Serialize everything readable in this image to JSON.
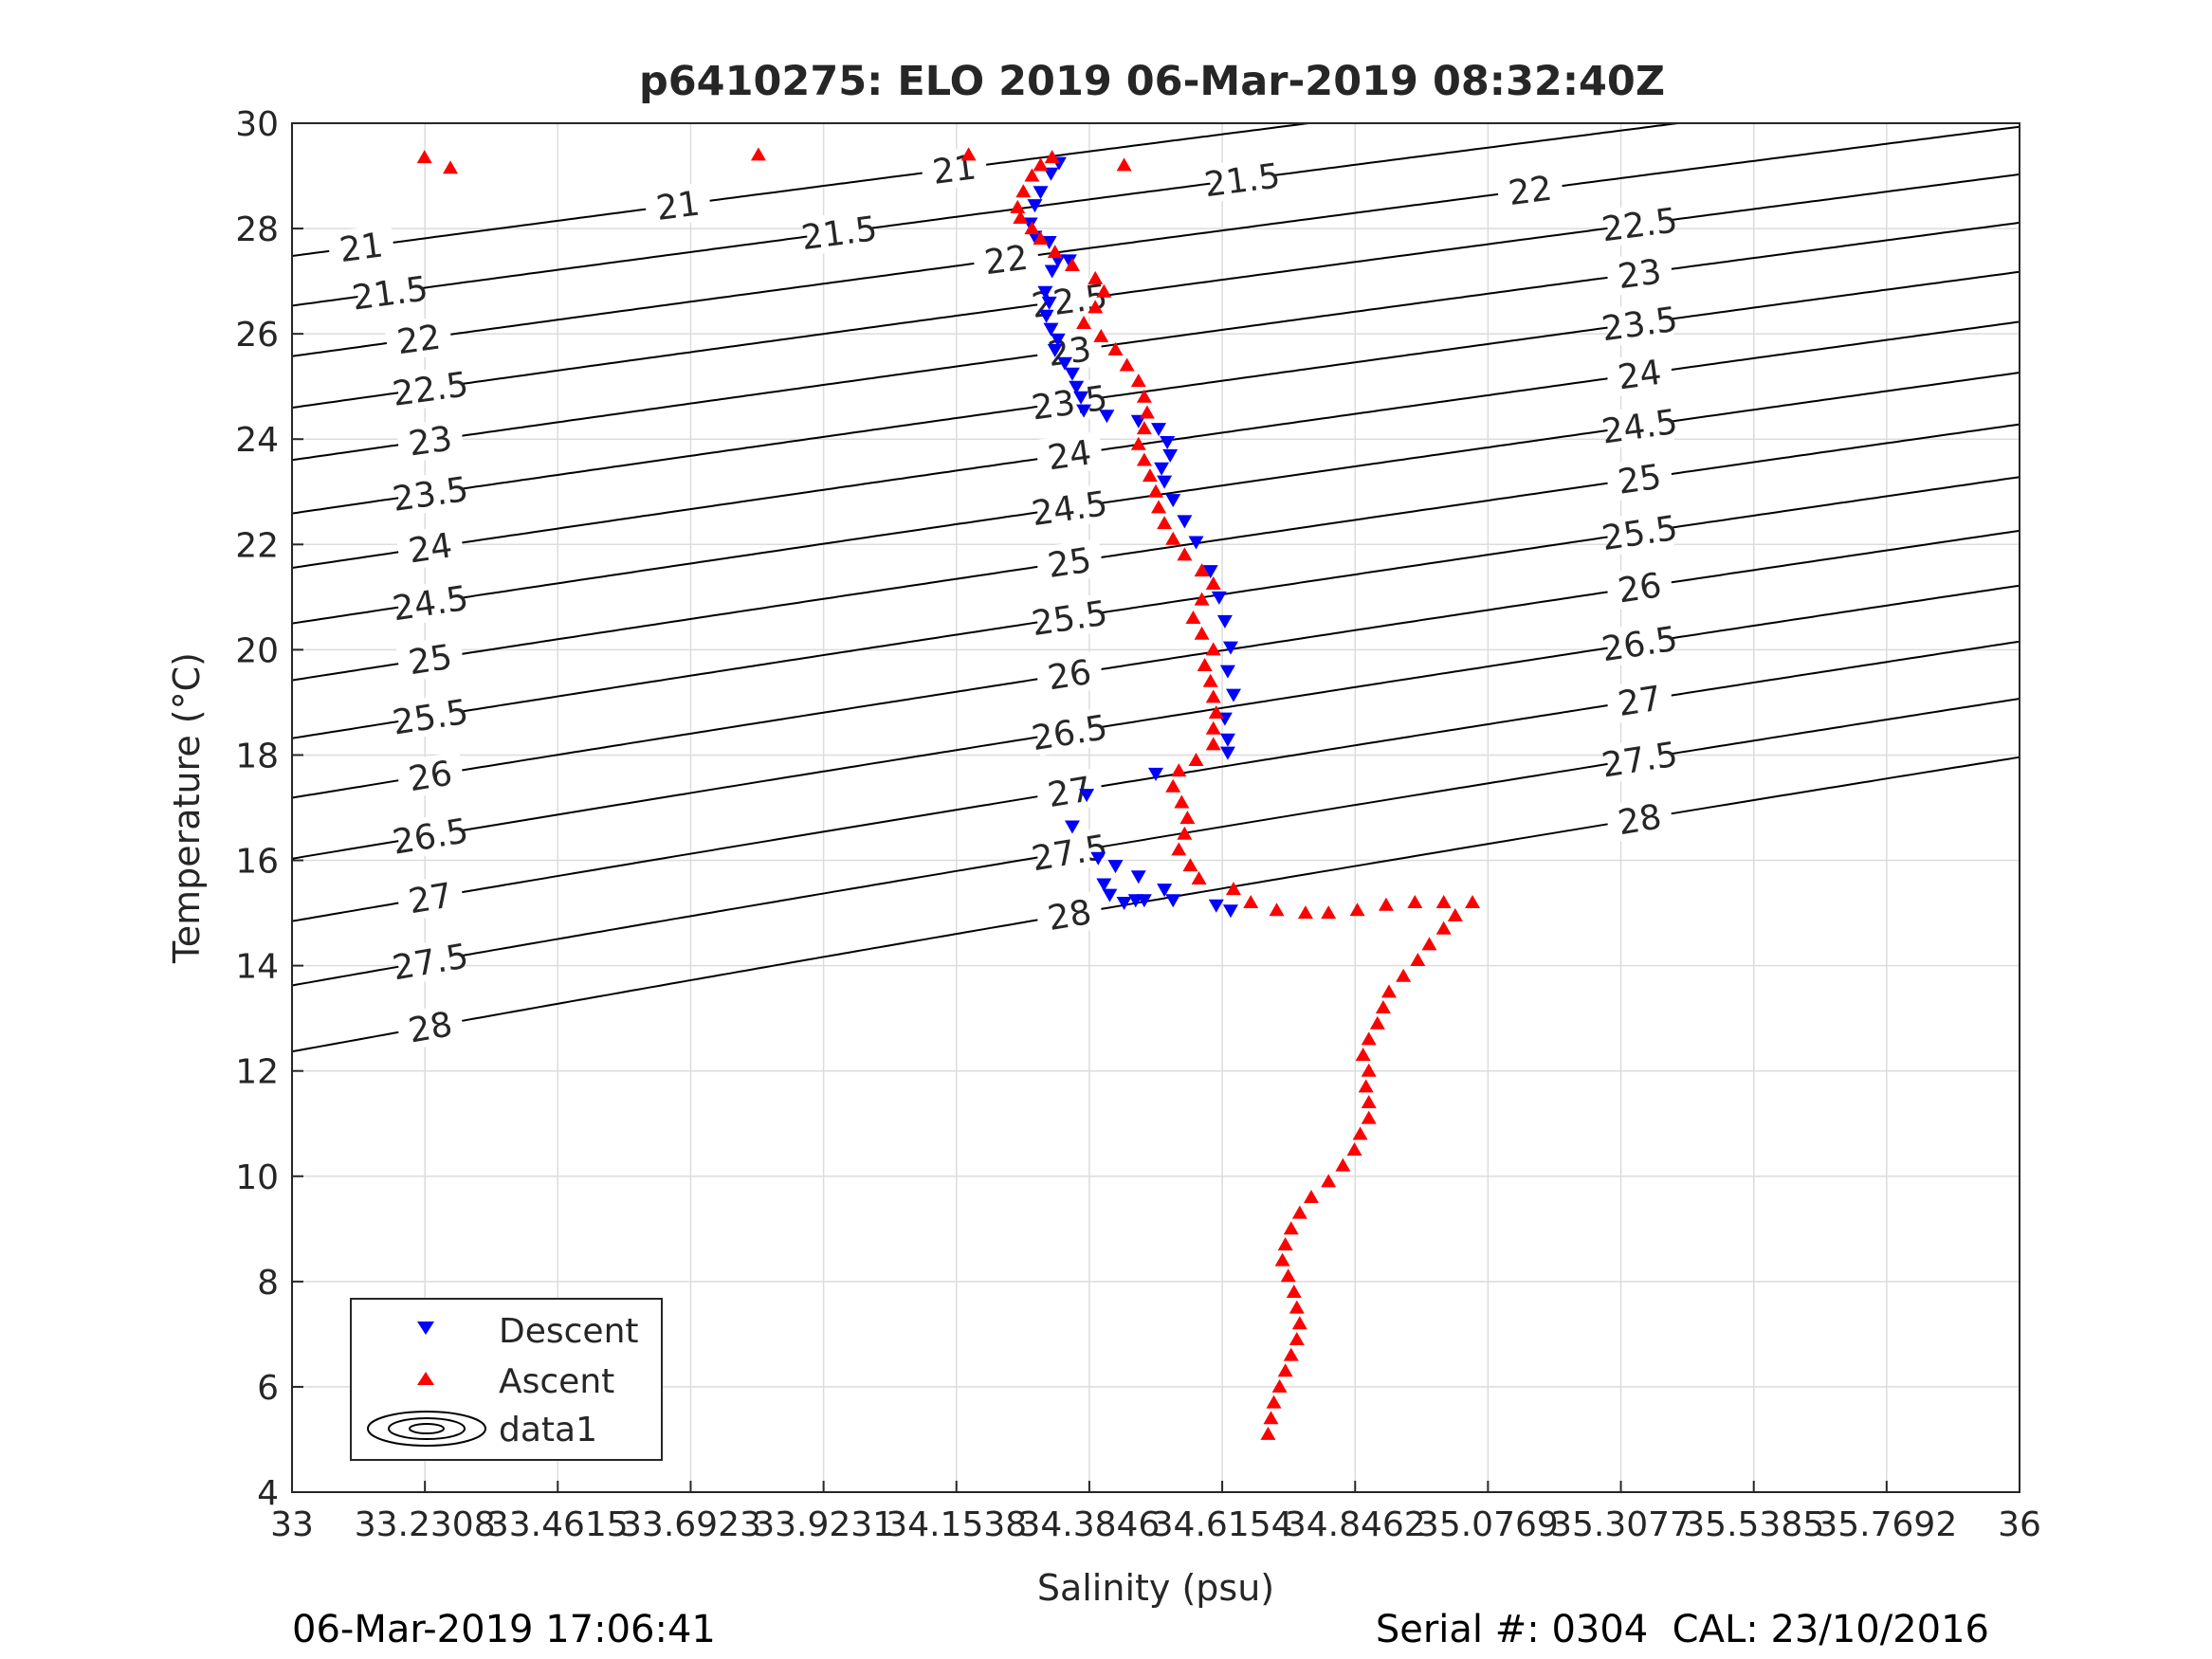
{
  "chart_data": {
    "type": "scatter",
    "title": "p6410275: ELO 2019 06-Mar-2019 08:32:40Z",
    "xlabel": "Salinity (psu)",
    "ylabel": "Temperature (°C)",
    "xlim": [
      33,
      36
    ],
    "ylim": [
      4,
      30
    ],
    "x_ticks": [
      "33",
      "33.2308",
      "33.4615",
      "33.6923",
      "33.9231",
      "34.1538",
      "34.3846",
      "34.6154",
      "34.8462",
      "35.0769",
      "35.3077",
      "35.5385",
      "35.7692",
      "36"
    ],
    "y_ticks": [
      "4",
      "6",
      "8",
      "10",
      "12",
      "14",
      "16",
      "18",
      "20",
      "22",
      "24",
      "26",
      "28",
      "30"
    ],
    "grid": true,
    "legend_position": "bottom-left",
    "legend": [
      "Descent",
      "Ascent",
      "data1"
    ],
    "colors": {
      "descent": "#0000ff",
      "ascent": "#ff0000",
      "contour": "#000000",
      "grid": "#dcdcdc"
    },
    "contour_levels": [
      "21",
      "21.5",
      "22",
      "22.5",
      "23",
      "23.5",
      "24",
      "24.5",
      "25",
      "25.5",
      "26",
      "26.5",
      "27",
      "27.5",
      "28"
    ],
    "series": [
      {
        "name": "Descent",
        "marker": "triangle-down",
        "points": [
          [
            34.332,
            29.25
          ],
          [
            34.318,
            29.05
          ],
          [
            34.3,
            28.7
          ],
          [
            34.29,
            28.45
          ],
          [
            34.282,
            28.1
          ],
          [
            34.29,
            27.85
          ],
          [
            34.315,
            27.75
          ],
          [
            34.33,
            27.4
          ],
          [
            34.35,
            27.4
          ],
          [
            34.32,
            27.2
          ],
          [
            34.308,
            26.8
          ],
          [
            34.315,
            26.6
          ],
          [
            34.31,
            26.35
          ],
          [
            34.318,
            26.1
          ],
          [
            34.33,
            25.9
          ],
          [
            34.325,
            25.7
          ],
          [
            34.342,
            25.45
          ],
          [
            34.355,
            25.25
          ],
          [
            34.362,
            25.0
          ],
          [
            34.37,
            24.8
          ],
          [
            34.375,
            24.55
          ],
          [
            34.415,
            24.45
          ],
          [
            34.47,
            24.35
          ],
          [
            34.505,
            24.2
          ],
          [
            34.52,
            23.95
          ],
          [
            34.525,
            23.7
          ],
          [
            34.51,
            23.45
          ],
          [
            34.515,
            23.2
          ],
          [
            34.53,
            22.85
          ],
          [
            34.55,
            22.45
          ],
          [
            34.57,
            22.05
          ],
          [
            34.595,
            21.5
          ],
          [
            34.61,
            21.0
          ],
          [
            34.62,
            20.55
          ],
          [
            34.63,
            20.05
          ],
          [
            34.625,
            19.6
          ],
          [
            34.635,
            19.15
          ],
          [
            34.62,
            18.7
          ],
          [
            34.625,
            18.3
          ],
          [
            34.625,
            18.05
          ],
          [
            34.5,
            17.65
          ],
          [
            34.38,
            17.25
          ],
          [
            34.355,
            16.65
          ],
          [
            34.4,
            16.05
          ],
          [
            34.43,
            15.9
          ],
          [
            34.47,
            15.7
          ],
          [
            34.515,
            15.45
          ],
          [
            34.53,
            15.25
          ],
          [
            34.41,
            15.55
          ],
          [
            34.42,
            15.35
          ],
          [
            34.445,
            15.2
          ],
          [
            34.465,
            15.25
          ],
          [
            34.48,
            15.25
          ],
          [
            34.605,
            15.15
          ],
          [
            34.63,
            15.05
          ]
        ]
      },
      {
        "name": "Ascent",
        "marker": "triangle-up",
        "points": [
          [
            33.23,
            29.35
          ],
          [
            33.275,
            29.15
          ],
          [
            33.81,
            29.4
          ],
          [
            34.175,
            29.4
          ],
          [
            34.445,
            29.2
          ],
          [
            34.32,
            29.35
          ],
          [
            34.3,
            29.2
          ],
          [
            34.285,
            29.0
          ],
          [
            34.27,
            28.7
          ],
          [
            34.26,
            28.4
          ],
          [
            34.265,
            28.2
          ],
          [
            34.285,
            28.0
          ],
          [
            34.3,
            27.8
          ],
          [
            34.325,
            27.55
          ],
          [
            34.355,
            27.3
          ],
          [
            34.395,
            27.05
          ],
          [
            34.41,
            26.8
          ],
          [
            34.395,
            26.5
          ],
          [
            34.375,
            26.2
          ],
          [
            34.405,
            25.95
          ],
          [
            34.43,
            25.7
          ],
          [
            34.45,
            25.4
          ],
          [
            34.47,
            25.1
          ],
          [
            34.48,
            24.8
          ],
          [
            34.485,
            24.5
          ],
          [
            34.48,
            24.2
          ],
          [
            34.47,
            23.9
          ],
          [
            34.48,
            23.6
          ],
          [
            34.49,
            23.3
          ],
          [
            34.5,
            23.0
          ],
          [
            34.505,
            22.7
          ],
          [
            34.515,
            22.4
          ],
          [
            34.53,
            22.1
          ],
          [
            34.55,
            21.8
          ],
          [
            34.58,
            21.5
          ],
          [
            34.6,
            21.25
          ],
          [
            34.58,
            20.95
          ],
          [
            34.565,
            20.6
          ],
          [
            34.58,
            20.3
          ],
          [
            34.6,
            20.0
          ],
          [
            34.585,
            19.7
          ],
          [
            34.595,
            19.4
          ],
          [
            34.6,
            19.1
          ],
          [
            34.605,
            18.8
          ],
          [
            34.6,
            18.5
          ],
          [
            34.6,
            18.2
          ],
          [
            34.57,
            17.9
          ],
          [
            34.54,
            17.7
          ],
          [
            34.53,
            17.4
          ],
          [
            34.545,
            17.1
          ],
          [
            34.555,
            16.8
          ],
          [
            34.55,
            16.5
          ],
          [
            34.54,
            16.2
          ],
          [
            34.56,
            15.9
          ],
          [
            34.575,
            15.65
          ],
          [
            34.635,
            15.45
          ],
          [
            34.665,
            15.2
          ],
          [
            34.71,
            15.05
          ],
          [
            34.76,
            15.0
          ],
          [
            34.8,
            15.0
          ],
          [
            34.85,
            15.05
          ],
          [
            34.9,
            15.15
          ],
          [
            34.95,
            15.2
          ],
          [
            35.0,
            15.2
          ],
          [
            35.05,
            15.2
          ],
          [
            35.02,
            14.95
          ],
          [
            35.0,
            14.7
          ],
          [
            34.975,
            14.4
          ],
          [
            34.955,
            14.1
          ],
          [
            34.93,
            13.8
          ],
          [
            34.905,
            13.5
          ],
          [
            34.895,
            13.2
          ],
          [
            34.885,
            12.9
          ],
          [
            34.87,
            12.6
          ],
          [
            34.86,
            12.3
          ],
          [
            34.87,
            12.0
          ],
          [
            34.865,
            11.7
          ],
          [
            34.87,
            11.4
          ],
          [
            34.87,
            11.1
          ],
          [
            34.855,
            10.8
          ],
          [
            34.845,
            10.5
          ],
          [
            34.825,
            10.2
          ],
          [
            34.8,
            9.9
          ],
          [
            34.77,
            9.6
          ],
          [
            34.75,
            9.3
          ],
          [
            34.735,
            9.0
          ],
          [
            34.725,
            8.7
          ],
          [
            34.72,
            8.4
          ],
          [
            34.73,
            8.1
          ],
          [
            34.74,
            7.8
          ],
          [
            34.745,
            7.5
          ],
          [
            34.75,
            7.2
          ],
          [
            34.745,
            6.9
          ],
          [
            34.735,
            6.6
          ],
          [
            34.725,
            6.3
          ],
          [
            34.715,
            6.0
          ],
          [
            34.705,
            5.7
          ],
          [
            34.7,
            5.4
          ],
          [
            34.695,
            5.1
          ]
        ]
      }
    ]
  },
  "footer": {
    "timestamp": "06-Mar-2019 17:06:41",
    "serial_cal": "Serial #: 0304  CAL: 23/10/2016"
  }
}
